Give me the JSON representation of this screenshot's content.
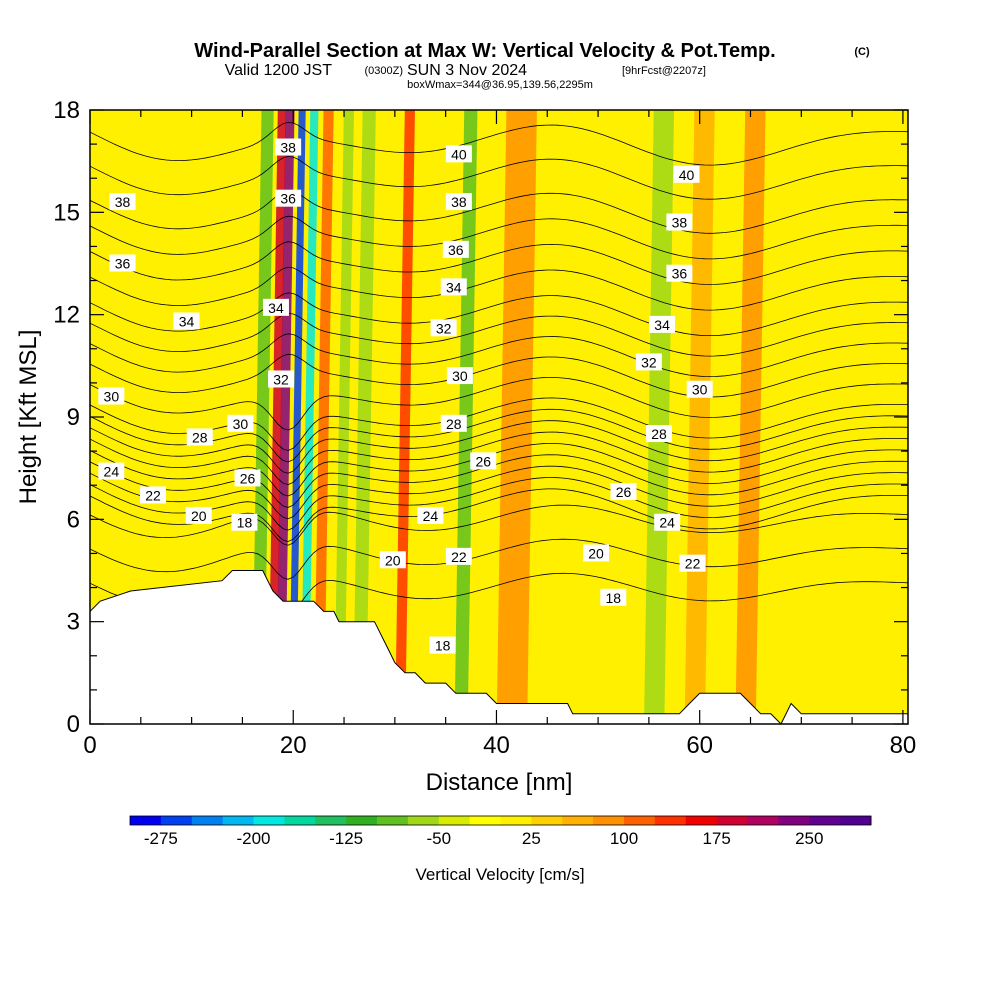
{
  "header": {
    "title": "Wind-Parallel Section at Max W: Vertical Velocity & Pot.Temp.",
    "copyright": "(C)",
    "valid_prefix": "Valid 1200 JST",
    "valid_z": "(0300Z)",
    "valid_date": "SUN 3 Nov 2024",
    "forecast": "[9hrFcst@2207z]",
    "boxwmax": "boxWmax=344@36.95,139.56,2295m"
  },
  "chart_data": {
    "type": "heatmap",
    "xlabel": "Distance [nm]",
    "ylabel": "Height [Kft MSL]",
    "xlim": [
      0,
      80.5
    ],
    "ylim": [
      0,
      18
    ],
    "x_ticks": [
      "0",
      "20",
      "40",
      "60",
      "80"
    ],
    "y_ticks": [
      "0",
      "3",
      "6",
      "9",
      "12",
      "15",
      "18"
    ],
    "colorbar": {
      "label": "Vertical Velocity [cm/s]",
      "tick_labels": [
        "-275",
        "-200",
        "-125",
        "-50",
        "25",
        "100",
        "175",
        "250"
      ],
      "min": -300,
      "max": 300,
      "colors": [
        "#0000f0",
        "#0040f0",
        "#0080f0",
        "#00b8f0",
        "#00e8e0",
        "#00d8a0",
        "#20c060",
        "#30b020",
        "#60c020",
        "#a0d818",
        "#d8ec00",
        "#ffff00",
        "#fff000",
        "#ffd000",
        "#ffb000",
        "#ff9000",
        "#ff6000",
        "#ff3000",
        "#f00000",
        "#d00030",
        "#b00060",
        "#800080",
        "#600090",
        "#500090"
      ]
    },
    "background_velocity": 20,
    "velocity_bands": [
      {
        "x": 19.2,
        "w": 0.9,
        "v": 240
      },
      {
        "x": 18.4,
        "w": 0.8,
        "v": 180
      },
      {
        "x": 20.4,
        "w": 0.7,
        "v": -275
      },
      {
        "x": 21.6,
        "w": 0.8,
        "v": -180
      },
      {
        "x": 17.0,
        "w": 1.2,
        "v": -80
      },
      {
        "x": 23.0,
        "w": 1.0,
        "v": 120
      },
      {
        "x": 25.0,
        "w": 1.0,
        "v": -60
      },
      {
        "x": 27.0,
        "w": 1.3,
        "v": -70
      },
      {
        "x": 31.0,
        "w": 1.0,
        "v": 140
      },
      {
        "x": 37.0,
        "w": 1.3,
        "v": -80
      },
      {
        "x": 42.0,
        "w": 3.0,
        "v": 90
      },
      {
        "x": 56.0,
        "w": 2.0,
        "v": -70
      },
      {
        "x": 60.0,
        "w": 2.0,
        "v": 60
      },
      {
        "x": 65.0,
        "w": 2.0,
        "v": 75
      }
    ],
    "theta_levels": [
      18,
      19,
      20,
      21,
      22,
      23,
      24,
      25,
      26,
      27,
      28,
      29,
      30,
      31,
      32,
      33,
      34,
      35,
      36,
      37,
      38,
      39,
      40
    ],
    "theta_profile": [
      {
        "height": 3.0,
        "theta": 17
      },
      {
        "height": 6.0,
        "theta": 20
      },
      {
        "height": 9.0,
        "theta": 29
      },
      {
        "height": 12.0,
        "theta": 34
      },
      {
        "height": 15.0,
        "theta": 38
      },
      {
        "height": 18.0,
        "theta": 41
      }
    ],
    "terrain": [
      {
        "x": 0,
        "height": 3.3
      },
      {
        "x": 1,
        "height": 3.6
      },
      {
        "x": 4,
        "height": 3.9
      },
      {
        "x": 13,
        "height": 4.2
      },
      {
        "x": 14,
        "height": 4.5
      },
      {
        "x": 17,
        "height": 4.5
      },
      {
        "x": 18,
        "height": 3.9
      },
      {
        "x": 19,
        "height": 3.6
      },
      {
        "x": 22,
        "height": 3.6
      },
      {
        "x": 23,
        "height": 3.3
      },
      {
        "x": 24,
        "height": 3.3
      },
      {
        "x": 24.5,
        "height": 3.0
      },
      {
        "x": 28,
        "height": 3.0
      },
      {
        "x": 29,
        "height": 2.4
      },
      {
        "x": 29.5,
        "height": 2.1
      },
      {
        "x": 30,
        "height": 1.8
      },
      {
        "x": 31,
        "height": 1.5
      },
      {
        "x": 32,
        "height": 1.5
      },
      {
        "x": 33,
        "height": 1.2
      },
      {
        "x": 35,
        "height": 1.2
      },
      {
        "x": 36,
        "height": 0.9
      },
      {
        "x": 39,
        "height": 0.9
      },
      {
        "x": 40,
        "height": 0.6
      },
      {
        "x": 47,
        "height": 0.6
      },
      {
        "x": 47.5,
        "height": 0.3
      },
      {
        "x": 55,
        "height": 0.3
      },
      {
        "x": 58,
        "height": 0.3
      },
      {
        "x": 59,
        "height": 0.6
      },
      {
        "x": 60,
        "height": 0.9
      },
      {
        "x": 62,
        "height": 0.9
      },
      {
        "x": 64,
        "height": 0.9
      },
      {
        "x": 65,
        "height": 0.6
      },
      {
        "x": 66,
        "height": 0.3
      },
      {
        "x": 67,
        "height": 0.3
      },
      {
        "x": 68,
        "height": 0.0
      },
      {
        "x": 69,
        "height": 0.6
      },
      {
        "x": 70,
        "height": 0.3
      },
      {
        "x": 80.5,
        "height": 0.3
      }
    ],
    "contour_labels": [
      {
        "text": "38",
        "x": 19.5,
        "height": 16.9
      },
      {
        "text": "36",
        "x": 19.5,
        "height": 15.4
      },
      {
        "text": "34",
        "x": 18.3,
        "height": 12.2
      },
      {
        "text": "32",
        "x": 18.8,
        "height": 10.1
      },
      {
        "text": "30",
        "x": 14.8,
        "height": 8.8
      },
      {
        "text": "26",
        "x": 15.5,
        "height": 7.2
      },
      {
        "text": "18",
        "x": 15.2,
        "height": 5.9
      },
      {
        "text": "38",
        "x": 3.2,
        "height": 15.3
      },
      {
        "text": "36",
        "x": 3.2,
        "height": 13.5
      },
      {
        "text": "34",
        "x": 9.5,
        "height": 11.8
      },
      {
        "text": "30",
        "x": 2.1,
        "height": 9.6
      },
      {
        "text": "28",
        "x": 10.8,
        "height": 8.4
      },
      {
        "text": "24",
        "x": 2.1,
        "height": 7.4
      },
      {
        "text": "22",
        "x": 6.2,
        "height": 6.7
      },
      {
        "text": "20",
        "x": 10.7,
        "height": 6.1
      },
      {
        "text": "40",
        "x": 36.3,
        "height": 16.7
      },
      {
        "text": "38",
        "x": 36.3,
        "height": 15.3
      },
      {
        "text": "36",
        "x": 36.0,
        "height": 13.9
      },
      {
        "text": "34",
        "x": 35.8,
        "height": 12.8
      },
      {
        "text": "32",
        "x": 34.8,
        "height": 11.6
      },
      {
        "text": "30",
        "x": 36.4,
        "height": 10.2
      },
      {
        "text": "28",
        "x": 35.8,
        "height": 8.8
      },
      {
        "text": "26",
        "x": 38.7,
        "height": 7.7
      },
      {
        "text": "24",
        "x": 33.5,
        "height": 6.1
      },
      {
        "text": "22",
        "x": 36.3,
        "height": 4.9
      },
      {
        "text": "20",
        "x": 29.8,
        "height": 4.8
      },
      {
        "text": "18",
        "x": 34.7,
        "height": 2.3
      },
      {
        "text": "40",
        "x": 58.7,
        "height": 16.1
      },
      {
        "text": "38",
        "x": 58.0,
        "height": 14.7
      },
      {
        "text": "36",
        "x": 58.0,
        "height": 13.2
      },
      {
        "text": "34",
        "x": 56.3,
        "height": 11.7
      },
      {
        "text": "32",
        "x": 55.0,
        "height": 10.6
      },
      {
        "text": "30",
        "x": 60.0,
        "height": 9.8
      },
      {
        "text": "28",
        "x": 56.0,
        "height": 8.5
      },
      {
        "text": "26",
        "x": 52.5,
        "height": 6.8
      },
      {
        "text": "24",
        "x": 56.8,
        "height": 5.9
      },
      {
        "text": "22",
        "x": 59.3,
        "height": 4.7
      },
      {
        "text": "20",
        "x": 49.8,
        "height": 5.0
      },
      {
        "text": "18",
        "x": 51.5,
        "height": 3.7
      }
    ]
  }
}
